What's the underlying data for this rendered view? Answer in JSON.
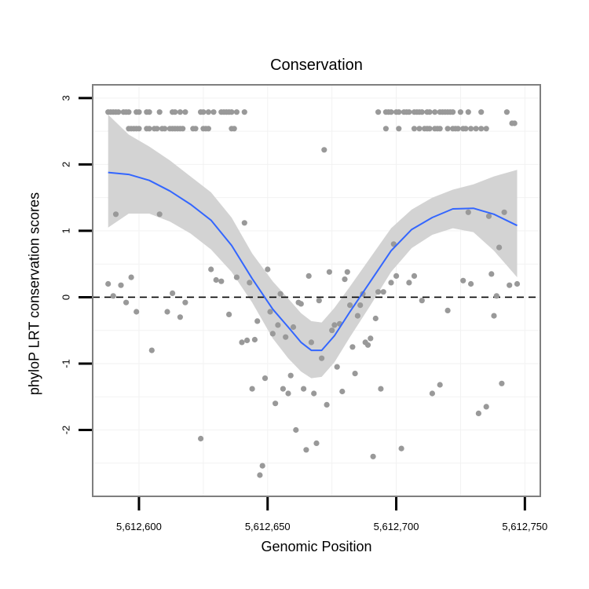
{
  "chart_data": {
    "type": "scatter",
    "title": "Conservation",
    "xlabel": "Genomic Position",
    "ylabel": "phyloP LRT conservation scores",
    "xlim": [
      5612582,
      5612756
    ],
    "ylim": [
      -3.0,
      3.2
    ],
    "xticks": [
      5612600,
      5612650,
      5612700,
      5612750
    ],
    "xtick_labels": [
      "5,612,600",
      "5,612,650",
      "5,612,700",
      "5,612,750"
    ],
    "yticks": [
      -2,
      -1,
      0,
      1,
      2,
      3
    ],
    "ytick_labels": [
      "-2",
      "-1",
      "0",
      "1",
      "2",
      "3"
    ],
    "grid": true,
    "reference_line": {
      "y": 0,
      "style": "dashed",
      "color": "#000000"
    },
    "colors": {
      "points": "#999999",
      "smooth_line": "#3366ff",
      "confidence_band": "#d3d3d3",
      "frame": "#7f7f7f",
      "grid": "#f2f2f2"
    },
    "series": [
      {
        "name": "scores",
        "points": [
          [
            5612588,
            2.79
          ],
          [
            5612589,
            2.79
          ],
          [
            5612590,
            2.79
          ],
          [
            5612591,
            2.79
          ],
          [
            5612592,
            2.79
          ],
          [
            5612594,
            2.79
          ],
          [
            5612595,
            2.79
          ],
          [
            5612596,
            2.79
          ],
          [
            5612599,
            2.79
          ],
          [
            5612600,
            2.79
          ],
          [
            5612603,
            2.79
          ],
          [
            5612604,
            2.79
          ],
          [
            5612608,
            2.79
          ],
          [
            5612613,
            2.79
          ],
          [
            5612614,
            2.79
          ],
          [
            5612616,
            2.79
          ],
          [
            5612618,
            2.79
          ],
          [
            5612624,
            2.79
          ],
          [
            5612625,
            2.79
          ],
          [
            5612627,
            2.79
          ],
          [
            5612629,
            2.79
          ],
          [
            5612632,
            2.79
          ],
          [
            5612633,
            2.79
          ],
          [
            5612634,
            2.79
          ],
          [
            5612635,
            2.79
          ],
          [
            5612636,
            2.79
          ],
          [
            5612638,
            2.79
          ],
          [
            5612641,
            2.79
          ],
          [
            5612596,
            2.54
          ],
          [
            5612597,
            2.54
          ],
          [
            5612598,
            2.54
          ],
          [
            5612599,
            2.54
          ],
          [
            5612600,
            2.54
          ],
          [
            5612603,
            2.54
          ],
          [
            5612604,
            2.54
          ],
          [
            5612606,
            2.54
          ],
          [
            5612607,
            2.54
          ],
          [
            5612609,
            2.54
          ],
          [
            5612610,
            2.54
          ],
          [
            5612612,
            2.54
          ],
          [
            5612613,
            2.54
          ],
          [
            5612614,
            2.54
          ],
          [
            5612615,
            2.54
          ],
          [
            5612616,
            2.54
          ],
          [
            5612617,
            2.54
          ],
          [
            5612621,
            2.54
          ],
          [
            5612622,
            2.54
          ],
          [
            5612625,
            2.54
          ],
          [
            5612626,
            2.54
          ],
          [
            5612627,
            2.54
          ],
          [
            5612636,
            2.54
          ],
          [
            5612637,
            2.54
          ],
          [
            5612693,
            2.79
          ],
          [
            5612696,
            2.79
          ],
          [
            5612697,
            2.79
          ],
          [
            5612698,
            2.79
          ],
          [
            5612700,
            2.79
          ],
          [
            5612701,
            2.79
          ],
          [
            5612703,
            2.79
          ],
          [
            5612704,
            2.79
          ],
          [
            5612705,
            2.79
          ],
          [
            5612707,
            2.79
          ],
          [
            5612708,
            2.79
          ],
          [
            5612709,
            2.79
          ],
          [
            5612710,
            2.79
          ],
          [
            5612712,
            2.79
          ],
          [
            5612713,
            2.79
          ],
          [
            5612715,
            2.79
          ],
          [
            5612717,
            2.79
          ],
          [
            5612718,
            2.79
          ],
          [
            5612719,
            2.79
          ],
          [
            5612720,
            2.79
          ],
          [
            5612721,
            2.79
          ],
          [
            5612722,
            2.79
          ],
          [
            5612725,
            2.79
          ],
          [
            5612728,
            2.79
          ],
          [
            5612733,
            2.79
          ],
          [
            5612743,
            2.79
          ],
          [
            5612696,
            2.54
          ],
          [
            5612701,
            2.54
          ],
          [
            5612707,
            2.54
          ],
          [
            5612709,
            2.54
          ],
          [
            5612711,
            2.54
          ],
          [
            5612712,
            2.54
          ],
          [
            5612713,
            2.54
          ],
          [
            5612715,
            2.54
          ],
          [
            5612716,
            2.54
          ],
          [
            5612717,
            2.54
          ],
          [
            5612720,
            2.54
          ],
          [
            5612722,
            2.54
          ],
          [
            5612723,
            2.54
          ],
          [
            5612724,
            2.54
          ],
          [
            5612726,
            2.54
          ],
          [
            5612727,
            2.54
          ],
          [
            5612729,
            2.54
          ],
          [
            5612731,
            2.54
          ],
          [
            5612733,
            2.54
          ],
          [
            5612735,
            2.54
          ],
          [
            5612745,
            2.62
          ],
          [
            5612746,
            2.62
          ],
          [
            5612672,
            2.22
          ],
          [
            5612588,
            0.2
          ],
          [
            5612590,
            0.02
          ],
          [
            5612591,
            1.25
          ],
          [
            5612593,
            0.18
          ],
          [
            5612595,
            -0.08
          ],
          [
            5612597,
            0.3
          ],
          [
            5612599,
            -0.22
          ],
          [
            5612605,
            -0.8
          ],
          [
            5612608,
            1.25
          ],
          [
            5612611,
            -0.22
          ],
          [
            5612613,
            0.06
          ],
          [
            5612616,
            -0.3
          ],
          [
            5612618,
            -0.08
          ],
          [
            5612624,
            -2.13
          ],
          [
            5612628,
            0.42
          ],
          [
            5612630,
            0.26
          ],
          [
            5612632,
            0.24
          ],
          [
            5612635,
            -0.26
          ],
          [
            5612638,
            0.3
          ],
          [
            5612640,
            -0.68
          ],
          [
            5612641,
            1.12
          ],
          [
            5612642,
            -0.65
          ],
          [
            5612643,
            0.22
          ],
          [
            5612644,
            -1.38
          ],
          [
            5612645,
            -0.64
          ],
          [
            5612646,
            -0.36
          ],
          [
            5612647,
            -2.68
          ],
          [
            5612648,
            -2.54
          ],
          [
            5612649,
            -1.22
          ],
          [
            5612650,
            0.42
          ],
          [
            5612651,
            -0.22
          ],
          [
            5612652,
            -0.55
          ],
          [
            5612653,
            -1.6
          ],
          [
            5612654,
            -0.42
          ],
          [
            5612655,
            0.05
          ],
          [
            5612656,
            -1.38
          ],
          [
            5612657,
            -0.6
          ],
          [
            5612658,
            -1.45
          ],
          [
            5612659,
            -1.18
          ],
          [
            5612660,
            -0.45
          ],
          [
            5612661,
            -2.0
          ],
          [
            5612662,
            -0.08
          ],
          [
            5612663,
            -0.1
          ],
          [
            5612664,
            -1.38
          ],
          [
            5612665,
            -2.3
          ],
          [
            5612666,
            0.32
          ],
          [
            5612667,
            -0.68
          ],
          [
            5612668,
            -1.45
          ],
          [
            5612669,
            -2.2
          ],
          [
            5612670,
            -0.05
          ],
          [
            5612671,
            -0.92
          ],
          [
            5612673,
            -1.62
          ],
          [
            5612674,
            0.38
          ],
          [
            5612675,
            -0.5
          ],
          [
            5612676,
            -0.42
          ],
          [
            5612677,
            -1.05
          ],
          [
            5612678,
            -0.4
          ],
          [
            5612679,
            -1.42
          ],
          [
            5612680,
            0.27
          ],
          [
            5612681,
            0.38
          ],
          [
            5612682,
            -0.12
          ],
          [
            5612683,
            -0.75
          ],
          [
            5612684,
            -1.15
          ],
          [
            5612685,
            -0.28
          ],
          [
            5612686,
            -0.12
          ],
          [
            5612687,
            0.05
          ],
          [
            5612688,
            -0.68
          ],
          [
            5612689,
            -0.72
          ],
          [
            5612690,
            -0.62
          ],
          [
            5612691,
            -2.4
          ],
          [
            5612692,
            -0.32
          ],
          [
            5612693,
            0.08
          ],
          [
            5612694,
            -1.38
          ],
          [
            5612695,
            0.08
          ],
          [
            5612698,
            0.22
          ],
          [
            5612699,
            0.8
          ],
          [
            5612700,
            0.32
          ],
          [
            5612702,
            -2.28
          ],
          [
            5612705,
            0.22
          ],
          [
            5612707,
            0.32
          ],
          [
            5612710,
            -0.05
          ],
          [
            5612714,
            -1.45
          ],
          [
            5612717,
            -1.32
          ],
          [
            5612720,
            -0.2
          ],
          [
            5612726,
            0.25
          ],
          [
            5612728,
            1.28
          ],
          [
            5612729,
            0.2
          ],
          [
            5612732,
            -1.75
          ],
          [
            5612735,
            -1.65
          ],
          [
            5612736,
            1.22
          ],
          [
            5612737,
            0.35
          ],
          [
            5612738,
            -0.28
          ],
          [
            5612739,
            0.02
          ],
          [
            5612740,
            0.75
          ],
          [
            5612741,
            -1.3
          ],
          [
            5612742,
            1.28
          ],
          [
            5612744,
            0.18
          ],
          [
            5612747,
            0.2
          ]
        ]
      },
      {
        "name": "loess fit",
        "x": [
          5612588,
          5612596,
          5612604,
          5612612,
          5612620,
          5612628,
          5612636,
          5612644,
          5612652,
          5612658,
          5612663,
          5612667,
          5612671,
          5612676,
          5612682,
          5612690,
          5612698,
          5612706,
          5612714,
          5612722,
          5612730,
          5612738,
          5612747
        ],
        "y": [
          1.88,
          1.85,
          1.76,
          1.6,
          1.4,
          1.16,
          0.78,
          0.28,
          -0.18,
          -0.45,
          -0.68,
          -0.8,
          -0.8,
          -0.58,
          -0.22,
          0.24,
          0.7,
          1.02,
          1.2,
          1.33,
          1.34,
          1.25,
          1.08
        ],
        "lower": [
          1.05,
          1.26,
          1.26,
          1.14,
          0.96,
          0.72,
          0.38,
          -0.08,
          -0.62,
          -0.92,
          -1.12,
          -1.22,
          -1.2,
          -0.98,
          -0.6,
          -0.12,
          0.38,
          0.74,
          0.94,
          1.04,
          0.98,
          0.7,
          0.3
        ],
        "upper": [
          2.75,
          2.45,
          2.27,
          2.06,
          1.82,
          1.58,
          1.2,
          0.66,
          0.24,
          -0.02,
          -0.24,
          -0.36,
          -0.38,
          -0.16,
          0.16,
          0.6,
          1.04,
          1.32,
          1.5,
          1.62,
          1.7,
          1.82,
          1.92
        ]
      }
    ]
  }
}
